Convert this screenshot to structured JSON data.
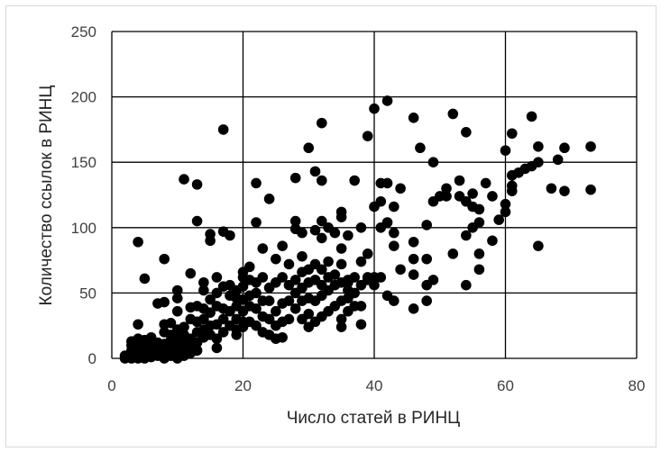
{
  "chart_data": {
    "type": "scatter",
    "title": "",
    "xlabel": "Число статей в РИНЦ",
    "ylabel": "Количество ссылок в РИНЦ",
    "xlim": [
      0,
      80
    ],
    "ylim": [
      0,
      250
    ],
    "x_ticks": [
      "0",
      "20",
      "40",
      "60",
      "80"
    ],
    "y_ticks": [
      "0",
      "50",
      "100",
      "150",
      "200",
      "250"
    ],
    "grid": true,
    "marker_color": "#000000",
    "series": [
      {
        "points": [
          [
            2,
            0
          ],
          [
            2,
            2
          ],
          [
            3,
            0
          ],
          [
            3,
            1
          ],
          [
            3,
            4
          ],
          [
            3,
            6
          ],
          [
            3,
            10
          ],
          [
            3,
            13
          ],
          [
            4,
            0
          ],
          [
            4,
            3
          ],
          [
            4,
            5
          ],
          [
            4,
            8
          ],
          [
            4,
            15
          ],
          [
            4,
            26
          ],
          [
            4,
            89
          ],
          [
            5,
            0
          ],
          [
            5,
            2
          ],
          [
            5,
            6
          ],
          [
            5,
            9
          ],
          [
            5,
            14
          ],
          [
            5,
            61
          ],
          [
            6,
            1
          ],
          [
            6,
            4
          ],
          [
            6,
            7
          ],
          [
            6,
            10
          ],
          [
            6,
            16
          ],
          [
            6,
            8
          ],
          [
            7,
            2
          ],
          [
            7,
            5
          ],
          [
            7,
            9
          ],
          [
            7,
            12
          ],
          [
            7,
            42
          ],
          [
            8,
            0
          ],
          [
            8,
            3
          ],
          [
            8,
            6
          ],
          [
            8,
            11
          ],
          [
            8,
            20
          ],
          [
            8,
            26
          ],
          [
            8,
            43
          ],
          [
            8,
            76
          ],
          [
            9,
            2
          ],
          [
            9,
            5
          ],
          [
            9,
            10
          ],
          [
            9,
            14
          ],
          [
            9,
            18
          ],
          [
            9,
            27
          ],
          [
            10,
            0
          ],
          [
            10,
            3
          ],
          [
            10,
            7
          ],
          [
            10,
            12
          ],
          [
            10,
            16
          ],
          [
            10,
            22
          ],
          [
            10,
            36
          ],
          [
            10,
            46
          ],
          [
            10,
            52
          ],
          [
            11,
            2
          ],
          [
            11,
            8
          ],
          [
            11,
            13
          ],
          [
            11,
            18
          ],
          [
            11,
            24
          ],
          [
            11,
            137
          ],
          [
            12,
            4
          ],
          [
            12,
            10
          ],
          [
            12,
            15
          ],
          [
            12,
            30
          ],
          [
            12,
            39
          ],
          [
            12,
            65
          ],
          [
            13,
            6
          ],
          [
            13,
            12
          ],
          [
            13,
            20
          ],
          [
            13,
            28
          ],
          [
            13,
            40
          ],
          [
            13,
            105
          ],
          [
            13,
            133
          ],
          [
            14,
            16
          ],
          [
            14,
            22
          ],
          [
            14,
            30
          ],
          [
            14,
            38
          ],
          [
            14,
            52
          ],
          [
            14,
            58
          ],
          [
            15,
            18
          ],
          [
            15,
            25
          ],
          [
            15,
            35
          ],
          [
            15,
            45
          ],
          [
            15,
            90
          ],
          [
            15,
            95
          ],
          [
            16,
            8
          ],
          [
            16,
            15
          ],
          [
            16,
            26
          ],
          [
            16,
            40
          ],
          [
            16,
            50
          ],
          [
            16,
            62
          ],
          [
            17,
            20
          ],
          [
            17,
            30
          ],
          [
            17,
            38
          ],
          [
            17,
            55
          ],
          [
            17,
            97
          ],
          [
            17,
            175
          ],
          [
            18,
            25
          ],
          [
            18,
            36
          ],
          [
            18,
            48
          ],
          [
            18,
            56
          ],
          [
            18,
            94
          ],
          [
            19,
            18
          ],
          [
            19,
            22
          ],
          [
            19,
            30
          ],
          [
            19,
            40
          ],
          [
            19,
            46
          ],
          [
            19,
            52
          ],
          [
            20,
            24
          ],
          [
            20,
            28
          ],
          [
            20,
            36
          ],
          [
            20,
            45
          ],
          [
            20,
            55
          ],
          [
            20,
            62
          ],
          [
            20,
            66
          ],
          [
            21,
            28
          ],
          [
            21,
            40
          ],
          [
            21,
            48
          ],
          [
            21,
            60
          ],
          [
            21,
            70
          ],
          [
            22,
            25
          ],
          [
            22,
            38
          ],
          [
            22,
            50
          ],
          [
            22,
            58
          ],
          [
            22,
            104
          ],
          [
            22,
            134
          ],
          [
            23,
            20
          ],
          [
            23,
            32
          ],
          [
            23,
            44
          ],
          [
            23,
            62
          ],
          [
            23,
            84
          ],
          [
            24,
            18
          ],
          [
            24,
            30
          ],
          [
            24,
            44
          ],
          [
            24,
            54
          ],
          [
            24,
            122
          ],
          [
            25,
            15
          ],
          [
            25,
            25
          ],
          [
            25,
            36
          ],
          [
            25,
            58
          ],
          [
            25,
            76
          ],
          [
            26,
            16
          ],
          [
            26,
            28
          ],
          [
            26,
            42
          ],
          [
            26,
            62
          ],
          [
            26,
            86
          ],
          [
            27,
            30
          ],
          [
            27,
            44
          ],
          [
            27,
            56
          ],
          [
            27,
            72
          ],
          [
            28,
            38
          ],
          [
            28,
            50
          ],
          [
            28,
            60
          ],
          [
            28,
            99
          ],
          [
            28,
            105
          ],
          [
            28,
            138
          ],
          [
            29,
            30
          ],
          [
            29,
            44
          ],
          [
            29,
            54
          ],
          [
            29,
            66
          ],
          [
            29,
            78
          ],
          [
            29,
            96
          ],
          [
            30,
            24
          ],
          [
            30,
            34
          ],
          [
            30,
            46
          ],
          [
            30,
            58
          ],
          [
            30,
            68
          ],
          [
            30,
            161
          ],
          [
            31,
            28
          ],
          [
            31,
            44
          ],
          [
            31,
            60
          ],
          [
            31,
            72
          ],
          [
            31,
            98
          ],
          [
            31,
            143
          ],
          [
            32,
            32
          ],
          [
            32,
            48
          ],
          [
            32,
            56
          ],
          [
            32,
            68
          ],
          [
            32,
            92
          ],
          [
            32,
            105
          ],
          [
            32,
            136
          ],
          [
            32,
            180
          ],
          [
            33,
            36
          ],
          [
            33,
            52
          ],
          [
            33,
            62
          ],
          [
            33,
            74
          ],
          [
            33,
            100
          ],
          [
            34,
            40
          ],
          [
            34,
            56
          ],
          [
            34,
            64
          ],
          [
            34,
            96
          ],
          [
            35,
            24
          ],
          [
            35,
            30
          ],
          [
            35,
            44
          ],
          [
            35,
            58
          ],
          [
            35,
            72
          ],
          [
            35,
            84
          ],
          [
            35,
            112
          ],
          [
            35,
            108
          ],
          [
            36,
            36
          ],
          [
            36,
            46
          ],
          [
            36,
            52
          ],
          [
            36,
            58
          ],
          [
            36,
            60
          ],
          [
            36,
            94
          ],
          [
            37,
            40
          ],
          [
            37,
            50
          ],
          [
            37,
            62
          ],
          [
            37,
            136
          ],
          [
            38,
            26
          ],
          [
            38,
            40
          ],
          [
            38,
            56
          ],
          [
            38,
            74
          ],
          [
            38,
            100
          ],
          [
            39,
            60
          ],
          [
            39,
            62
          ],
          [
            39,
            80
          ],
          [
            39,
            170
          ],
          [
            40,
            56
          ],
          [
            40,
            62
          ],
          [
            40,
            116
          ],
          [
            40,
            191
          ],
          [
            41,
            62
          ],
          [
            41,
            100
          ],
          [
            41,
            120
          ],
          [
            41,
            134
          ],
          [
            42,
            48
          ],
          [
            42,
            104
          ],
          [
            42,
            134
          ],
          [
            42,
            197
          ],
          [
            43,
            44
          ],
          [
            43,
            86
          ],
          [
            43,
            96
          ],
          [
            43,
            116
          ],
          [
            44,
            68
          ],
          [
            44,
            130
          ],
          [
            46,
            38
          ],
          [
            46,
            64
          ],
          [
            46,
            76
          ],
          [
            46,
            89
          ],
          [
            46,
            184
          ],
          [
            47,
            161
          ],
          [
            48,
            44
          ],
          [
            48,
            56
          ],
          [
            48,
            76
          ],
          [
            48,
            102
          ],
          [
            49,
            60
          ],
          [
            49,
            120
          ],
          [
            49,
            150
          ],
          [
            50,
            124
          ],
          [
            51,
            124
          ],
          [
            51,
            130
          ],
          [
            52,
            80
          ],
          [
            52,
            187
          ],
          [
            53,
            124
          ],
          [
            53,
            136
          ],
          [
            54,
            56
          ],
          [
            54,
            94
          ],
          [
            54,
            120
          ],
          [
            54,
            173
          ],
          [
            55,
            100
          ],
          [
            55,
            116
          ],
          [
            55,
            126
          ],
          [
            56,
            68
          ],
          [
            56,
            80
          ],
          [
            56,
            104
          ],
          [
            56,
            114
          ],
          [
            57,
            134
          ],
          [
            58,
            90
          ],
          [
            58,
            124
          ],
          [
            59,
            106
          ],
          [
            60,
            112
          ],
          [
            60,
            118
          ],
          [
            60,
            159
          ],
          [
            61,
            128
          ],
          [
            61,
            132
          ],
          [
            61,
            140
          ],
          [
            61,
            172
          ],
          [
            62,
            142
          ],
          [
            63,
            145
          ],
          [
            64,
            147
          ],
          [
            64,
            185
          ],
          [
            65,
            86
          ],
          [
            65,
            150
          ],
          [
            65,
            162
          ],
          [
            67,
            130
          ],
          [
            68,
            152
          ],
          [
            69,
            128
          ],
          [
            69,
            161
          ],
          [
            73,
            129
          ],
          [
            73,
            162
          ]
        ]
      }
    ]
  }
}
